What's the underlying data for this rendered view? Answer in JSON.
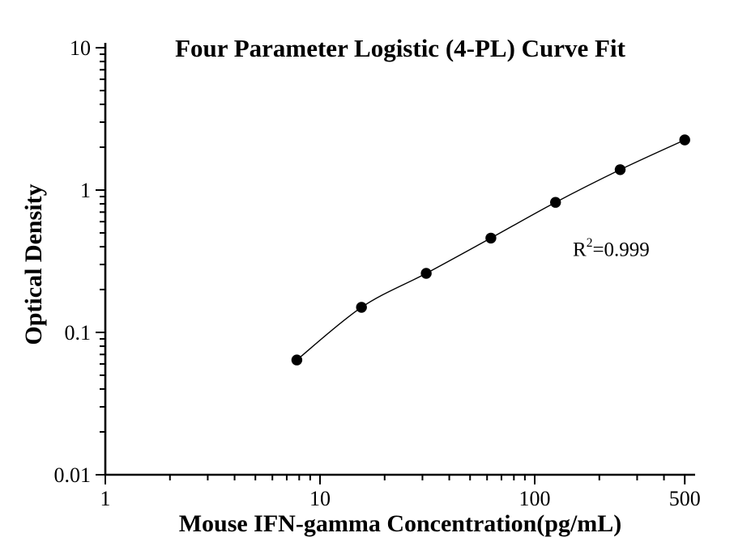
{
  "figure": {
    "background": "#ffffff",
    "foreground": "#000000"
  },
  "chart_data": {
    "type": "scatter",
    "title": "Four Parameter Logistic (4-PL) Curve Fit",
    "xlabel": "Mouse IFN-gamma Concentration(pg/mL)",
    "ylabel": "Optical Density",
    "x_scale": "log",
    "y_scale": "log",
    "xlim": [
      1,
      560
    ],
    "ylim": [
      0.01,
      10
    ],
    "x_major_ticks": [
      1,
      10,
      100,
      500
    ],
    "x_tick_labels": [
      "1",
      "10",
      "100",
      "500"
    ],
    "y_major_ticks": [
      0.01,
      0.1,
      1,
      10
    ],
    "y_tick_labels": [
      "0.01",
      "0.1",
      "1",
      "10"
    ],
    "tick_direction": "out",
    "grid": false,
    "legend": false,
    "series": [
      {
        "name": "standard-curve-points",
        "marker": "filled-circle",
        "marker_color": "#000000",
        "x": [
          7.8,
          15.6,
          31.25,
          62.5,
          125,
          250,
          500
        ],
        "y": [
          0.064,
          0.15,
          0.26,
          0.46,
          0.82,
          1.39,
          2.25
        ]
      }
    ],
    "fit": {
      "type": "4-PL",
      "line_color": "#000000",
      "r_squared": "0.999"
    },
    "annotation": {
      "text": "R²=0.999",
      "base": "R",
      "exponent": "2",
      "suffix": "=0.999"
    },
    "colors": {
      "axis": "#000000",
      "text": "#000000",
      "background": "#ffffff"
    }
  }
}
